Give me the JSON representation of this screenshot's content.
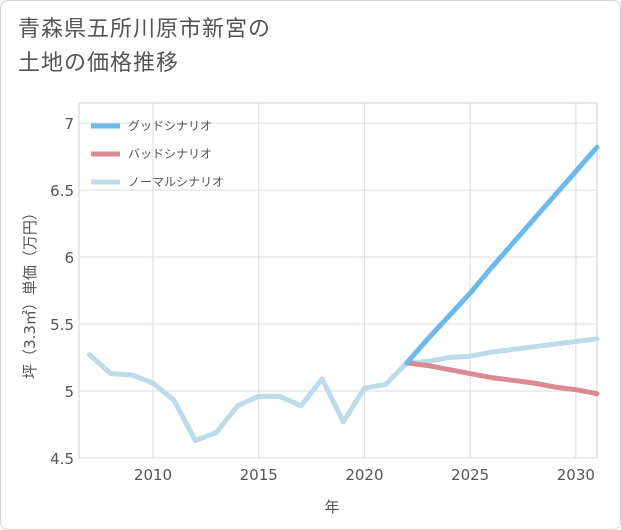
{
  "title_lines": [
    "青森県五所川原市新宮の",
    "土地の価格推移"
  ],
  "chart_data": {
    "type": "line",
    "title": "青森県五所川原市新宮の土地の価格推移",
    "xlabel": "年",
    "ylabel": "坪（3.3㎡）単価（万円）",
    "xlim": [
      2006.5,
      2031
    ],
    "ylim": [
      4.5,
      7.15
    ],
    "xticks": [
      2010,
      2015,
      2020,
      2025,
      2030
    ],
    "yticks": [
      4.5,
      5,
      5.5,
      6,
      6.5,
      7
    ],
    "ytick_labels": [
      "4.5",
      "5",
      "5.5",
      "6",
      "6.5",
      "7"
    ],
    "grid": true,
    "legend_position": "top-left",
    "series": [
      {
        "name": "グッドシナリオ",
        "color": "#6cb9ec",
        "x": [
          2022,
          2023,
          2024,
          2025,
          2026,
          2027,
          2028,
          2029,
          2030,
          2031
        ],
        "y": [
          5.21,
          5.39,
          5.56,
          5.73,
          5.92,
          6.1,
          6.28,
          6.46,
          6.64,
          6.82
        ]
      },
      {
        "name": "バッドシナリオ",
        "color": "#db8a92",
        "x": [
          2022,
          2023,
          2024,
          2025,
          2026,
          2027,
          2028,
          2029,
          2030,
          2031
        ],
        "y": [
          5.21,
          5.19,
          5.16,
          5.13,
          5.1,
          5.08,
          5.06,
          5.03,
          5.01,
          4.98
        ]
      },
      {
        "name": "ノーマルシナリオ",
        "color": "#bcdcea",
        "x": [
          2007,
          2008,
          2009,
          2010,
          2011,
          2012,
          2013,
          2014,
          2015,
          2016,
          2017,
          2018,
          2019,
          2020,
          2021,
          2022,
          2023,
          2024,
          2025,
          2026,
          2027,
          2028,
          2029,
          2030,
          2031
        ],
        "y": [
          5.27,
          5.13,
          5.12,
          5.06,
          4.93,
          4.63,
          4.69,
          4.89,
          4.96,
          4.96,
          4.89,
          5.09,
          4.77,
          5.02,
          5.05,
          5.21,
          5.22,
          5.25,
          5.26,
          5.29,
          5.31,
          5.33,
          5.35,
          5.37,
          5.39
        ]
      }
    ]
  }
}
